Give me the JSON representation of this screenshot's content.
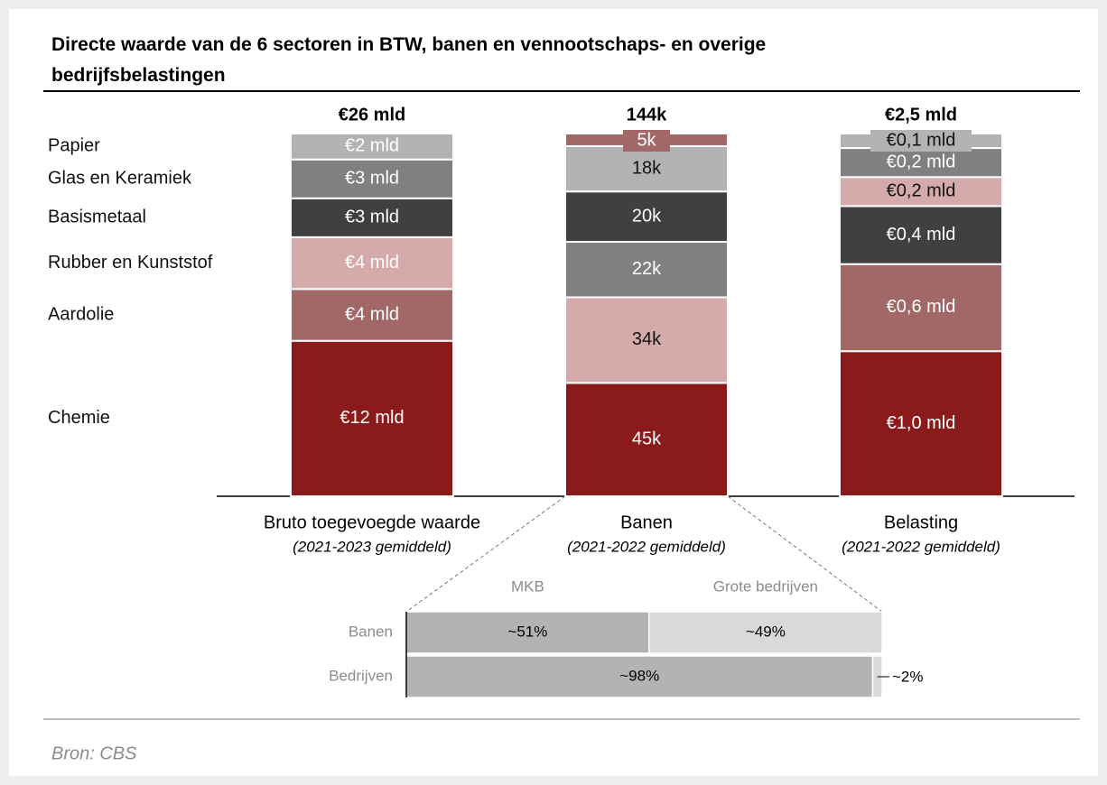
{
  "chart_data": {
    "type": "stacked-bar-normalized",
    "title": "Directe waarde van de 6 sectoren in BTW, banen en vennootschaps- en overige bedrijfsbelastingen",
    "sectors": [
      {
        "name": "Chemie",
        "color": "#8b1a1a"
      },
      {
        "name": "Aardolie",
        "color": "#a26868"
      },
      {
        "name": "Rubber en Kunststof",
        "color": "#d4aaaa"
      },
      {
        "name": "Basismetaal",
        "color": "#404040"
      },
      {
        "name": "Glas en Keramiek",
        "color": "#808080"
      },
      {
        "name": "Papier",
        "color": "#b3b3b3"
      }
    ],
    "columns": [
      {
        "category": "Bruto toegevoegde waarde",
        "subtitle": "(2021-2023 gemiddeld)",
        "total": 26,
        "total_label": "€26 mld",
        "values": [
          12,
          4,
          4,
          3,
          3,
          2
        ],
        "value_labels": [
          "€12 mld",
          "€4 mld",
          "€4 mld",
          "€3 mld",
          "€3 mld",
          "€2 mld"
        ],
        "colors": [
          "#8b1a1a",
          "#a26868",
          "#d4aaaa",
          "#404040",
          "#808080",
          "#b3b3b3"
        ]
      },
      {
        "category": "Banen",
        "subtitle": "(2021-2022 gemiddeld)",
        "total": 144,
        "total_label": "144k",
        "values": [
          45,
          34,
          22,
          20,
          18,
          5
        ],
        "value_labels": [
          "45k",
          "34k",
          "22k",
          "20k",
          "18k",
          "5k"
        ],
        "colors": [
          "#8b1a1a",
          "#d4aaaa",
          "#808080",
          "#404040",
          "#b3b3b3",
          "#a26868"
        ]
      },
      {
        "category": "Belasting",
        "subtitle": "(2021-2022 gemiddeld)",
        "total": 2.5,
        "total_label": "€2,5 mld",
        "values": [
          1.0,
          0.6,
          0.4,
          0.2,
          0.2,
          0.1
        ],
        "value_labels": [
          "€1,0 mld",
          "€0,6 mld",
          "€0,4 mld",
          "€0,2 mld",
          "€0,2 mld",
          "€0,1 mld"
        ],
        "colors": [
          "#8b1a1a",
          "#a26868",
          "#404040",
          "#d4aaaa",
          "#808080",
          "#b3b3b3"
        ]
      }
    ],
    "breakdown": {
      "type": "stacked-bar-100",
      "categories": [
        "MKB",
        "Grote bedrijven"
      ],
      "colors": [
        "#b3b3b3",
        "#d9d9d9"
      ],
      "rows": [
        {
          "name": "Banen",
          "values": [
            51,
            49
          ],
          "value_labels": [
            "~51%",
            "~49%"
          ]
        },
        {
          "name": "Bedrijven",
          "values": [
            98,
            2
          ],
          "value_labels": [
            "~98%",
            "~2%"
          ]
        }
      ]
    },
    "source": "Bron: CBS"
  }
}
